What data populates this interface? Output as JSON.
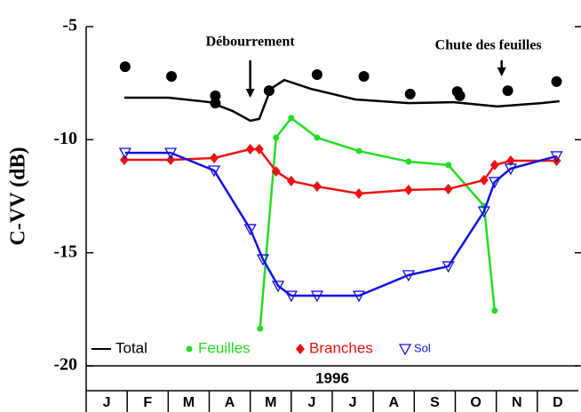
{
  "chart_data": {
    "type": "line",
    "y_label": "C-VV (dB)",
    "year": "1996",
    "categories": [
      "J",
      "F",
      "M",
      "A",
      "M",
      "J",
      "J",
      "A",
      "S",
      "O",
      "N",
      "D"
    ],
    "xlim": [
      0,
      12
    ],
    "ylim": [
      -20,
      -5
    ],
    "yticks": [
      -5,
      -10,
      -15,
      -20
    ],
    "annotations": [
      {
        "text": "Débourrement",
        "x": 4.0
      },
      {
        "text": "Chute des feuilles",
        "x": 10.13
      }
    ],
    "series": [
      {
        "name": "Total",
        "color": "#000000",
        "marker": "none",
        "x": [
          0.93,
          2.01,
          3.01,
          3.57,
          4.0,
          4.22,
          4.5,
          4.83,
          5.48,
          6.56,
          7.86,
          8.94,
          10.02,
          11.1,
          11.54
        ],
        "values": [
          -8.14,
          -8.14,
          -8.34,
          -8.73,
          -9.16,
          -9.08,
          -7.75,
          -7.36,
          -7.75,
          -8.22,
          -8.38,
          -8.34,
          -8.53,
          -8.38,
          -8.3
        ]
      },
      {
        "name": "Feuilles",
        "color": "#22dd22",
        "marker": "circle",
        "x": [
          4.24,
          4.63,
          5.0,
          5.63,
          6.65,
          7.86,
          8.83,
          9.7,
          9.96
        ],
        "values": [
          -18.35,
          -9.91,
          -9.04,
          -9.91,
          -10.5,
          -10.97,
          -11.12,
          -12.93,
          -17.56
        ]
      },
      {
        "name": "Branches",
        "color": "#ee1111",
        "marker": "diamond",
        "x": [
          0.93,
          2.06,
          3.12,
          4.0,
          4.22,
          4.63,
          5.0,
          5.63,
          6.65,
          7.86,
          8.83,
          9.7,
          9.96,
          10.35,
          11.47
        ],
        "values": [
          -10.89,
          -10.89,
          -10.81,
          -10.42,
          -10.42,
          -11.4,
          -11.83,
          -12.07,
          -12.38,
          -12.22,
          -12.18,
          -11.79,
          -11.12,
          -10.93,
          -10.93
        ]
      },
      {
        "name": "Sol",
        "color": "#1111dd",
        "marker": "triangle",
        "x": [
          0.95,
          2.06,
          3.12,
          4.0,
          4.31,
          4.68,
          5.0,
          5.63,
          6.65,
          7.86,
          8.83,
          9.7,
          9.96,
          10.35,
          11.47
        ],
        "values": [
          -10.58,
          -10.58,
          -11.36,
          -13.95,
          -15.29,
          -16.46,
          -16.9,
          -16.9,
          -16.9,
          -15.99,
          -15.6,
          -13.17,
          -11.87,
          -11.28,
          -10.73
        ]
      }
    ],
    "dots": {
      "color": "#000000",
      "x": [
        0.95,
        2.08,
        3.15,
        3.15,
        4.46,
        5.63,
        6.77,
        7.9,
        9.05,
        9.11,
        10.28,
        11.47
      ],
      "values": [
        -6.77,
        -7.2,
        -8.06,
        -8.38,
        -7.83,
        -7.12,
        -7.2,
        -7.98,
        -7.87,
        -8.06,
        -7.83,
        -7.43
      ]
    }
  }
}
